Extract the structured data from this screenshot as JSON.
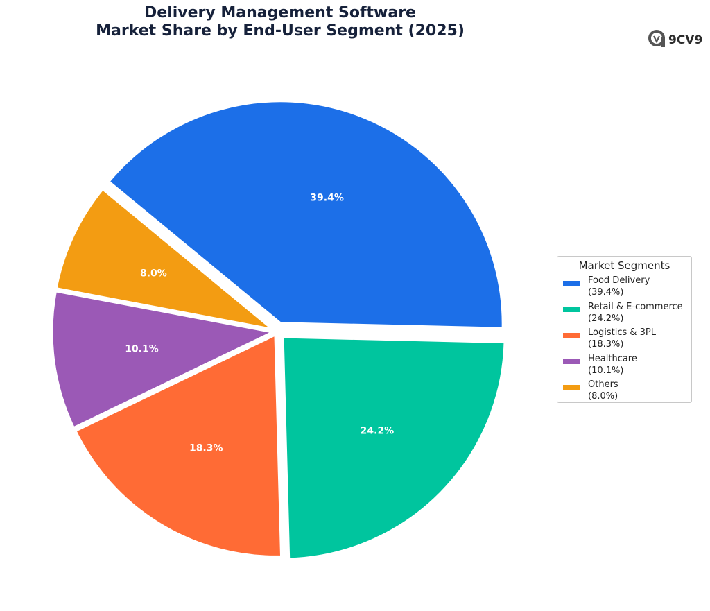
{
  "chart_data": {
    "type": "pie",
    "title": [
      "Delivery Management Software",
      "Market Share by End-User Segment (2025)"
    ],
    "categories": [
      "Food Delivery",
      "Retail & E-commerce",
      "Logistics & 3PL",
      "Healthcare",
      "Others"
    ],
    "values": [
      39.4,
      24.2,
      18.3,
      10.1,
      8.0
    ],
    "value_labels": [
      "39.4%",
      "24.2%",
      "18.3%",
      "10.1%",
      "8.0%"
    ],
    "colors": [
      "#1c6fe8",
      "#00c59e",
      "#ff6b35",
      "#9b59b6",
      "#f39c12"
    ],
    "legend_title": "Market Segments",
    "legend_entries": [
      {
        "name": "Food Delivery",
        "pct": "(39.4%)"
      },
      {
        "name": "Retail & E-commerce",
        "pct": "(24.2%)"
      },
      {
        "name": "Logistics & 3PL",
        "pct": "(18.3%)"
      },
      {
        "name": "Healthcare",
        "pct": "(10.1%)"
      },
      {
        "name": "Others",
        "pct": "(8.0%)"
      }
    ],
    "legend_position": "right"
  },
  "watermark": {
    "text": "9CV9",
    "icon": "9cv9-logo-icon"
  }
}
